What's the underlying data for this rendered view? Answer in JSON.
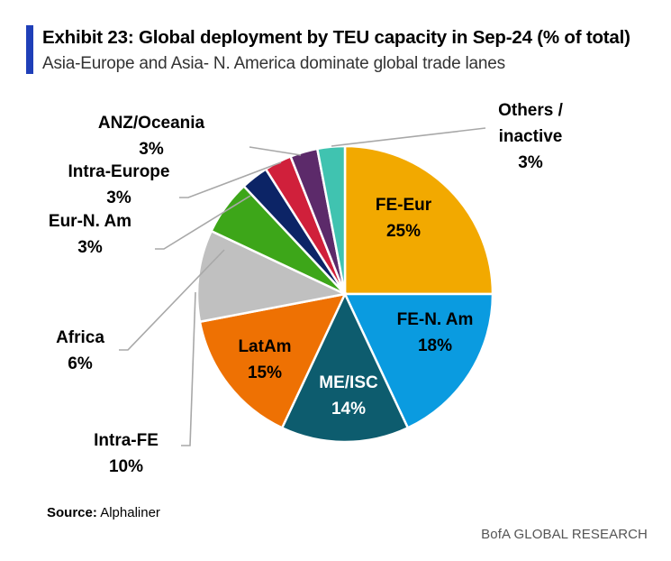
{
  "header": {
    "title": "Exhibit 23: Global deployment by TEU capacity in Sep-24 (% of total)",
    "subtitle": "Asia-Europe and Asia- N. America dominate global trade lanes"
  },
  "footer": {
    "source_label": "Source:",
    "source_value": "Alphaliner",
    "brand": "BofA GLOBAL RESEARCH"
  },
  "colors": {
    "accent": "#1F3FB8"
  },
  "chart_data": {
    "type": "pie",
    "title": "Exhibit 23: Global deployment by TEU capacity in Sep-24 (% of total)",
    "subtitle": "Asia-Europe and Asia- N. America dominate global trade lanes",
    "unit": "%",
    "slices": [
      {
        "name": "FE-Eur",
        "value": 25,
        "label": "25%",
        "color": "#F2A900",
        "label_lines": [
          "FE-Eur"
        ]
      },
      {
        "name": "FE-N. Am",
        "value": 18,
        "label": "18%",
        "color": "#0A9BE0",
        "label_lines": [
          "FE-N. Am"
        ]
      },
      {
        "name": "ME/ISC",
        "value": 14,
        "label": "14%",
        "color": "#0D5C6E",
        "label_lines": [
          "ME/ISC"
        ]
      },
      {
        "name": "LatAm",
        "value": 15,
        "label": "15%",
        "color": "#EE7103",
        "label_lines": [
          "LatAm"
        ]
      },
      {
        "name": "Intra-FE",
        "value": 10,
        "label": "10%",
        "color": "#C0C0C0",
        "label_lines": [
          "Intra-FE"
        ]
      },
      {
        "name": "Africa",
        "value": 6,
        "label": "6%",
        "color": "#3DA619",
        "label_lines": [
          "Africa"
        ]
      },
      {
        "name": "Eur-N. Am",
        "value": 3,
        "label": "3%",
        "color": "#0C2466",
        "label_lines": [
          "Eur-N. Am"
        ]
      },
      {
        "name": "Intra-Europe",
        "value": 3,
        "label": "3%",
        "color": "#D0203B",
        "label_lines": [
          "Intra-Europe"
        ]
      },
      {
        "name": "ANZ/Oceania",
        "value": 3,
        "label": "3%",
        "color": "#5C2A6A",
        "label_lines": [
          "ANZ/Oceania"
        ]
      },
      {
        "name": "Others / inactive",
        "value": 3,
        "label": "3%",
        "color": "#40C3B0",
        "label_lines": [
          "Others /",
          "inactive"
        ]
      }
    ]
  }
}
